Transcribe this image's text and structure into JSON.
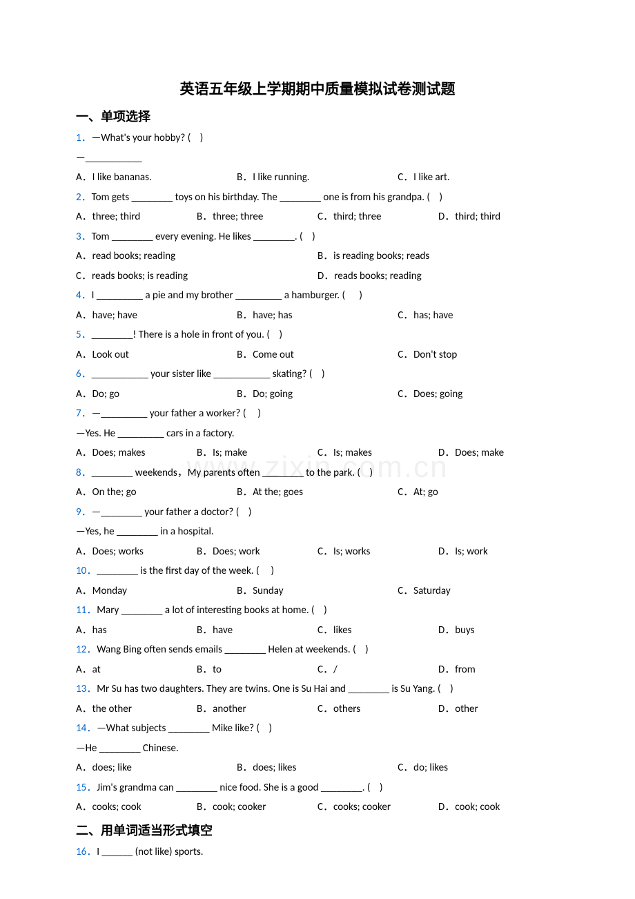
{
  "colors": {
    "link_blue": "#0066cc",
    "text": "#000000",
    "bg": "#ffffff",
    "watermark": "rgba(0,0,0,0.06)"
  },
  "fonts": {
    "body": "Calibri/Arial 15px",
    "title_cn": "SimSun bold 21px",
    "section_cn": "SimSun bold 18px"
  },
  "watermark": "www.zixin.com.cn",
  "title": "英语五年级上学期期中质量模拟试卷测试题",
  "section1": "一、单项选择",
  "section2": "二、用单词适当形式填空",
  "q1": {
    "num": "1．",
    "stem": "—What's your hobby? (    )",
    "stem2": "—___________",
    "a": "A．I like bananas.",
    "b": "B．I like running.",
    "c": "C．I like art."
  },
  "q2": {
    "num": "2．",
    "stem": "Tom gets ________ toys on his birthday. The ________ one is from his grandpa. (    )",
    "a": "A．three; third",
    "b": "B．three; three",
    "c": "C．third; three",
    "d": "D．third; third"
  },
  "q3": {
    "num": "3．",
    "stem": "Tom ________ every evening. He likes ________. (    )",
    "a": "A．read books; reading",
    "b": "B．is reading books; reads",
    "c": "C．reads books; is reading",
    "d": "D．reads books; reading"
  },
  "q4": {
    "num": "4．",
    "stem": "I _________ a pie and my brother _________ a hamburger. (      )",
    "a": "A．have; have",
    "b": "B．have; has",
    "c": "C．has; have"
  },
  "q5": {
    "num": "5．",
    "stem": "________! There is a hole in front of you. (    )",
    "a": "A．Look out",
    "b": "B．Come out",
    "c": "C．Don't stop"
  },
  "q6": {
    "num": "6．",
    "stem": "___________ your sister like ___________ skating? (    )",
    "a": "A．Do; go",
    "b": "B．Do; going",
    "c": "C．Does; going"
  },
  "q7": {
    "num": "7．",
    "stem": "—_________ your father a worker? (     )",
    "stem2": "—Yes. He _________ cars in a factory.",
    "a": "A．Does; makes",
    "b": "B．Is; make",
    "c": "C．Is; makes",
    "d": "D．Does; make"
  },
  "q8": {
    "num": "8．",
    "stem": "________ weekends，My parents often ________ to the park. (    )",
    "a": "A．On the; go",
    "b": "B．At the; goes",
    "c": "C．At; go"
  },
  "q9": {
    "num": "9．",
    "stem": "—________ your father a doctor? (    )",
    "stem2": "—Yes, he ________ in a hospital.",
    "a": "A．Does; works",
    "b": "B．Does; work",
    "c": "C．Is; works",
    "d": "D．Is; work"
  },
  "q10": {
    "num": "10．",
    "stem": "________ is the first day of the week. (     )",
    "a": "A．Monday",
    "b": "B．Sunday",
    "c": "C．Saturday"
  },
  "q11": {
    "num": "11．",
    "stem": "Mary ________ a lot of interesting books at home. (    )",
    "a": "A．has",
    "b": "B．have",
    "c": "C．likes",
    "d": "D．buys"
  },
  "q12": {
    "num": "12．",
    "stem": "Wang Bing often sends emails ________ Helen at weekends. (    )",
    "a": "A．at",
    "b": "B．to",
    "c": "C．/",
    "d": "D．from"
  },
  "q13": {
    "num": "13．",
    "stem": "Mr Su has two daughters. They are twins. One is Su Hai and ________ is Su Yang. (    )",
    "a": "A．the other",
    "b": "B．another",
    "c": "C．others",
    "d": "D．other"
  },
  "q14": {
    "num": "14．",
    "stem": "—What subjects ________ Mike like? (    )",
    "stem2": "—He ________ Chinese.",
    "a": "A．does; like",
    "b": "B．does; likes",
    "c": "C．do; likes"
  },
  "q15": {
    "num": "15．",
    "stem": "Jim's grandma can ________ nice food. She is a good ________. (    )",
    "a": "A．cooks; cook",
    "b": "B．cook; cooker",
    "c": "C．cooks; cooker",
    "d": "D．cook; cook"
  },
  "q16": {
    "num": "16．",
    "stem": "I ______ (not like) sports."
  }
}
